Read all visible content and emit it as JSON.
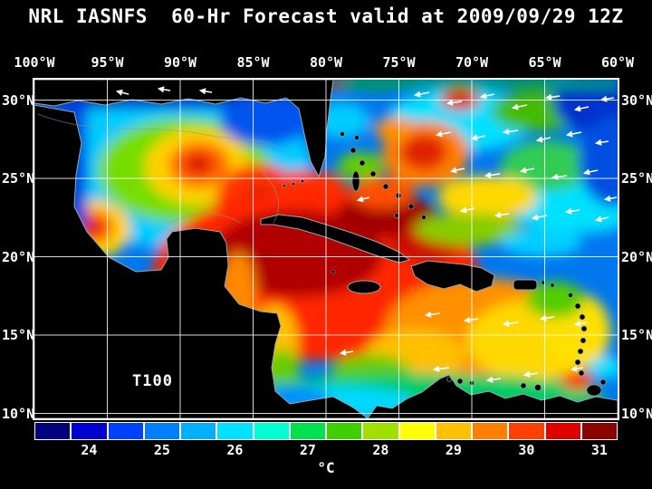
{
  "title": "NRL IASNFS  60-Hr Forecast valid at 2009/09/29 12Z",
  "map": {
    "field_label": "T100",
    "lon_ticks": [
      "100°W",
      "95°W",
      "90°W",
      "85°W",
      "80°W",
      "75°W",
      "70°W",
      "65°W",
      "60°W"
    ],
    "lat_ticks_left": [
      "30°N",
      "25°N",
      "20°N",
      "15°N",
      "10°N"
    ],
    "lat_ticks_right": [
      "30°N",
      "25°N",
      "20°N",
      "15°N",
      "10°N"
    ]
  },
  "colorbar": {
    "unit": "°C",
    "tick_labels": [
      "24",
      "25",
      "26",
      "27",
      "28",
      "29",
      "30",
      "31"
    ],
    "colors": [
      "#000080",
      "#0000d0",
      "#0040ff",
      "#0080ff",
      "#00b0ff",
      "#00e0ff",
      "#00ffd0",
      "#00e050",
      "#40d000",
      "#a0e000",
      "#ffff00",
      "#ffc000",
      "#ff8000",
      "#ff4000",
      "#e00000",
      "#8a0500"
    ]
  },
  "colors": {
    "background": "#000000",
    "land": "#000000",
    "grid": "#ffffff",
    "text": "#ffffff"
  },
  "chart_data": {
    "type": "heatmap",
    "title": "NRL IASNFS 60-Hr Forecast valid at 2009/09/29 12Z",
    "field": "T100",
    "unit": "°C",
    "colorbar_ticks": [
      24,
      25,
      26,
      27,
      28,
      29,
      30,
      31
    ],
    "x_ticks": [
      "100°W",
      "95°W",
      "90°W",
      "85°W",
      "80°W",
      "75°W",
      "70°W",
      "65°W",
      "60°W"
    ],
    "y_ticks": [
      "30°N",
      "25°N",
      "20°N",
      "15°N",
      "10°N"
    ],
    "legend_position": "bottom"
  }
}
